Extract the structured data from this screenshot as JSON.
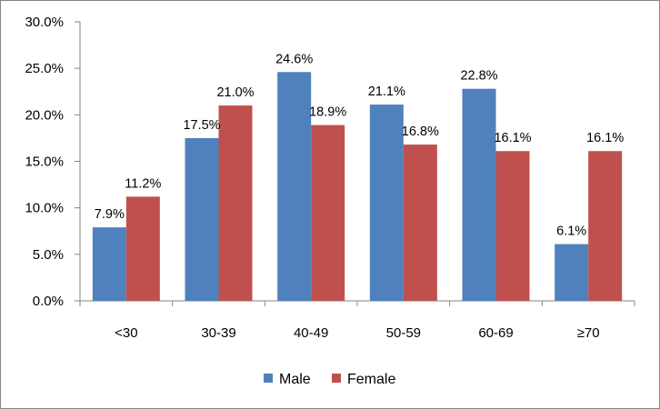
{
  "chart_data": {
    "type": "bar",
    "categories": [
      "<30",
      "30-39",
      "40-49",
      "50-59",
      "60-69",
      "≥70"
    ],
    "series": [
      {
        "name": "Male",
        "color": "#4F81BD",
        "values": [
          7.9,
          17.5,
          24.6,
          21.1,
          22.8,
          6.1
        ],
        "labels": [
          "7.9%",
          "17.5%",
          "24.6%",
          "21.1%",
          "22.8%",
          "6.1%"
        ]
      },
      {
        "name": "Female",
        "color": "#C0504D",
        "values": [
          11.2,
          21.0,
          18.9,
          16.8,
          16.1,
          16.1
        ],
        "labels": [
          "11.2%",
          "21.0%",
          "18.9%",
          "16.8%",
          "16.1%",
          "16.1%"
        ]
      }
    ],
    "y_ticks": [
      "0.0%",
      "5.0%",
      "10.0%",
      "15.0%",
      "20.0%",
      "25.0%",
      "30.0%"
    ],
    "ylim": [
      0,
      30
    ],
    "grid": false,
    "legend_position": "bottom",
    "title": "",
    "xlabel": "",
    "ylabel": ""
  }
}
